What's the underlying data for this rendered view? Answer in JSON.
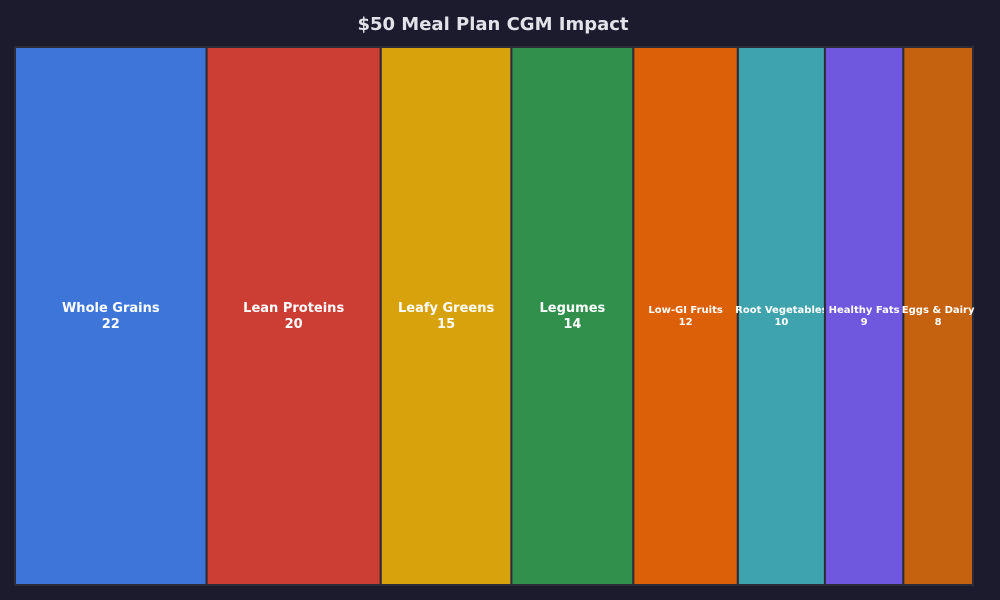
{
  "chart_data": {
    "type": "treemap",
    "title": "$50 Meal Plan CGM Impact",
    "categories": [
      "Whole Grains",
      "Lean Proteins",
      "Leafy Greens",
      "Legumes",
      "Low-GI Fruits",
      "Root Vegetables",
      "Healthy Fats",
      "Eggs & Dairy"
    ],
    "values": [
      22,
      20,
      15,
      14,
      12,
      10,
      9,
      8
    ],
    "colors": [
      "#3d76d8",
      "#cc3d34",
      "#d7a20b",
      "#31914c",
      "#dc6008",
      "#3ea3ad",
      "#6f58de",
      "#c4620f"
    ],
    "background": "#1b1b2d",
    "border_color": "#2a2a38"
  }
}
